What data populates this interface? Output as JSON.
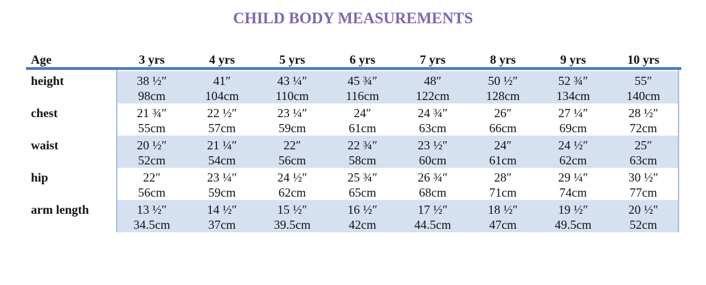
{
  "title": "CHILD BODY MEASUREMENTS",
  "table": {
    "header": [
      "Age",
      "3 yrs",
      "4 yrs",
      "5 yrs",
      "6 yrs",
      "7 yrs",
      "8 yrs",
      "9 yrs",
      "10 yrs"
    ],
    "rows": [
      {
        "label": "height",
        "cells": [
          {
            "inches": "38 ½″",
            "cm": "98cm"
          },
          {
            "inches": "41″",
            "cm": "104cm"
          },
          {
            "inches": "43 ¼″",
            "cm": "110cm"
          },
          {
            "inches": "45 ¾″",
            "cm": "116cm"
          },
          {
            "inches": "48″",
            "cm": "122cm"
          },
          {
            "inches": "50 ½″",
            "cm": "128cm"
          },
          {
            "inches": "52 ¾″",
            "cm": "134cm"
          },
          {
            "inches": "55″",
            "cm": "140cm"
          }
        ]
      },
      {
        "label": "chest",
        "cells": [
          {
            "inches": "21 ¾″",
            "cm": "55cm"
          },
          {
            "inches": "22 ½″",
            "cm": "57cm"
          },
          {
            "inches": "23 ¼″",
            "cm": "59cm"
          },
          {
            "inches": "24″",
            "cm": "61cm"
          },
          {
            "inches": "24 ¾″",
            "cm": "63cm"
          },
          {
            "inches": "26″",
            "cm": "66cm"
          },
          {
            "inches": "27 ¼″",
            "cm": "69cm"
          },
          {
            "inches": "28 ½″",
            "cm": "72cm"
          }
        ]
      },
      {
        "label": "waist",
        "cells": [
          {
            "inches": "20 ½″",
            "cm": "52cm"
          },
          {
            "inches": "21 ¼″",
            "cm": "54cm"
          },
          {
            "inches": "22″",
            "cm": "56cm"
          },
          {
            "inches": "22 ¾″",
            "cm": "58cm"
          },
          {
            "inches": "23 ½″",
            "cm": "60cm"
          },
          {
            "inches": "24″",
            "cm": "61cm"
          },
          {
            "inches": "24 ½″",
            "cm": "62cm"
          },
          {
            "inches": "25″",
            "cm": "63cm"
          }
        ]
      },
      {
        "label": "hip",
        "cells": [
          {
            "inches": "22″",
            "cm": "56cm"
          },
          {
            "inches": "23 ¼″",
            "cm": "59cm"
          },
          {
            "inches": "24 ½″",
            "cm": "62cm"
          },
          {
            "inches": "25 ¾″",
            "cm": "65cm"
          },
          {
            "inches": "26 ¾″",
            "cm": "68cm"
          },
          {
            "inches": "28″",
            "cm": "71cm"
          },
          {
            "inches": "29 ¼″",
            "cm": "74cm"
          },
          {
            "inches": "30 ½″",
            "cm": "77cm"
          }
        ]
      },
      {
        "label": "arm length",
        "cells": [
          {
            "inches": "13 ½″",
            "cm": "34.5cm"
          },
          {
            "inches": "14 ½″",
            "cm": "37cm"
          },
          {
            "inches": "15 ½″",
            "cm": "39.5cm"
          },
          {
            "inches": "16 ½″",
            "cm": "42cm"
          },
          {
            "inches": "17 ½″",
            "cm": "44.5cm"
          },
          {
            "inches": "18 ½″",
            "cm": "47cm"
          },
          {
            "inches": "19 ½″",
            "cm": "49.5cm"
          },
          {
            "inches": "20 ½″",
            "cm": "52cm"
          }
        ]
      }
    ]
  }
}
